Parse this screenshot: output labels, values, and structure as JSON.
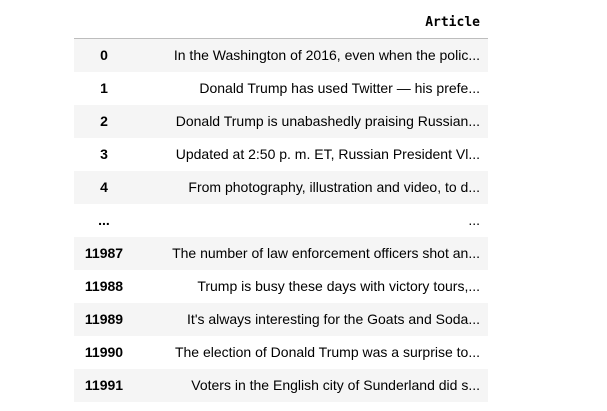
{
  "table": {
    "columns": [
      "Article"
    ],
    "rows": [
      {
        "index": "0",
        "article": "In the Washington of 2016, even when the polic..."
      },
      {
        "index": "1",
        "article": "Donald Trump has used Twitter — his prefe..."
      },
      {
        "index": "2",
        "article": "Donald Trump is unabashedly praising Russian..."
      },
      {
        "index": "3",
        "article": "Updated at 2:50 p. m. ET, Russian President Vl..."
      },
      {
        "index": "4",
        "article": "From photography, illustration and video, to d..."
      },
      {
        "index": "...",
        "article": "..."
      },
      {
        "index": "11987",
        "article": "The number of law enforcement officers shot an..."
      },
      {
        "index": "11988",
        "article": "Trump is busy these days with victory tours,..."
      },
      {
        "index": "11989",
        "article": "It's always interesting for the Goats and Soda..."
      },
      {
        "index": "11990",
        "article": "The election of Donald Trump was a surprise to..."
      },
      {
        "index": "11991",
        "article": "Voters in the English city of Sunderland did s..."
      }
    ]
  }
}
